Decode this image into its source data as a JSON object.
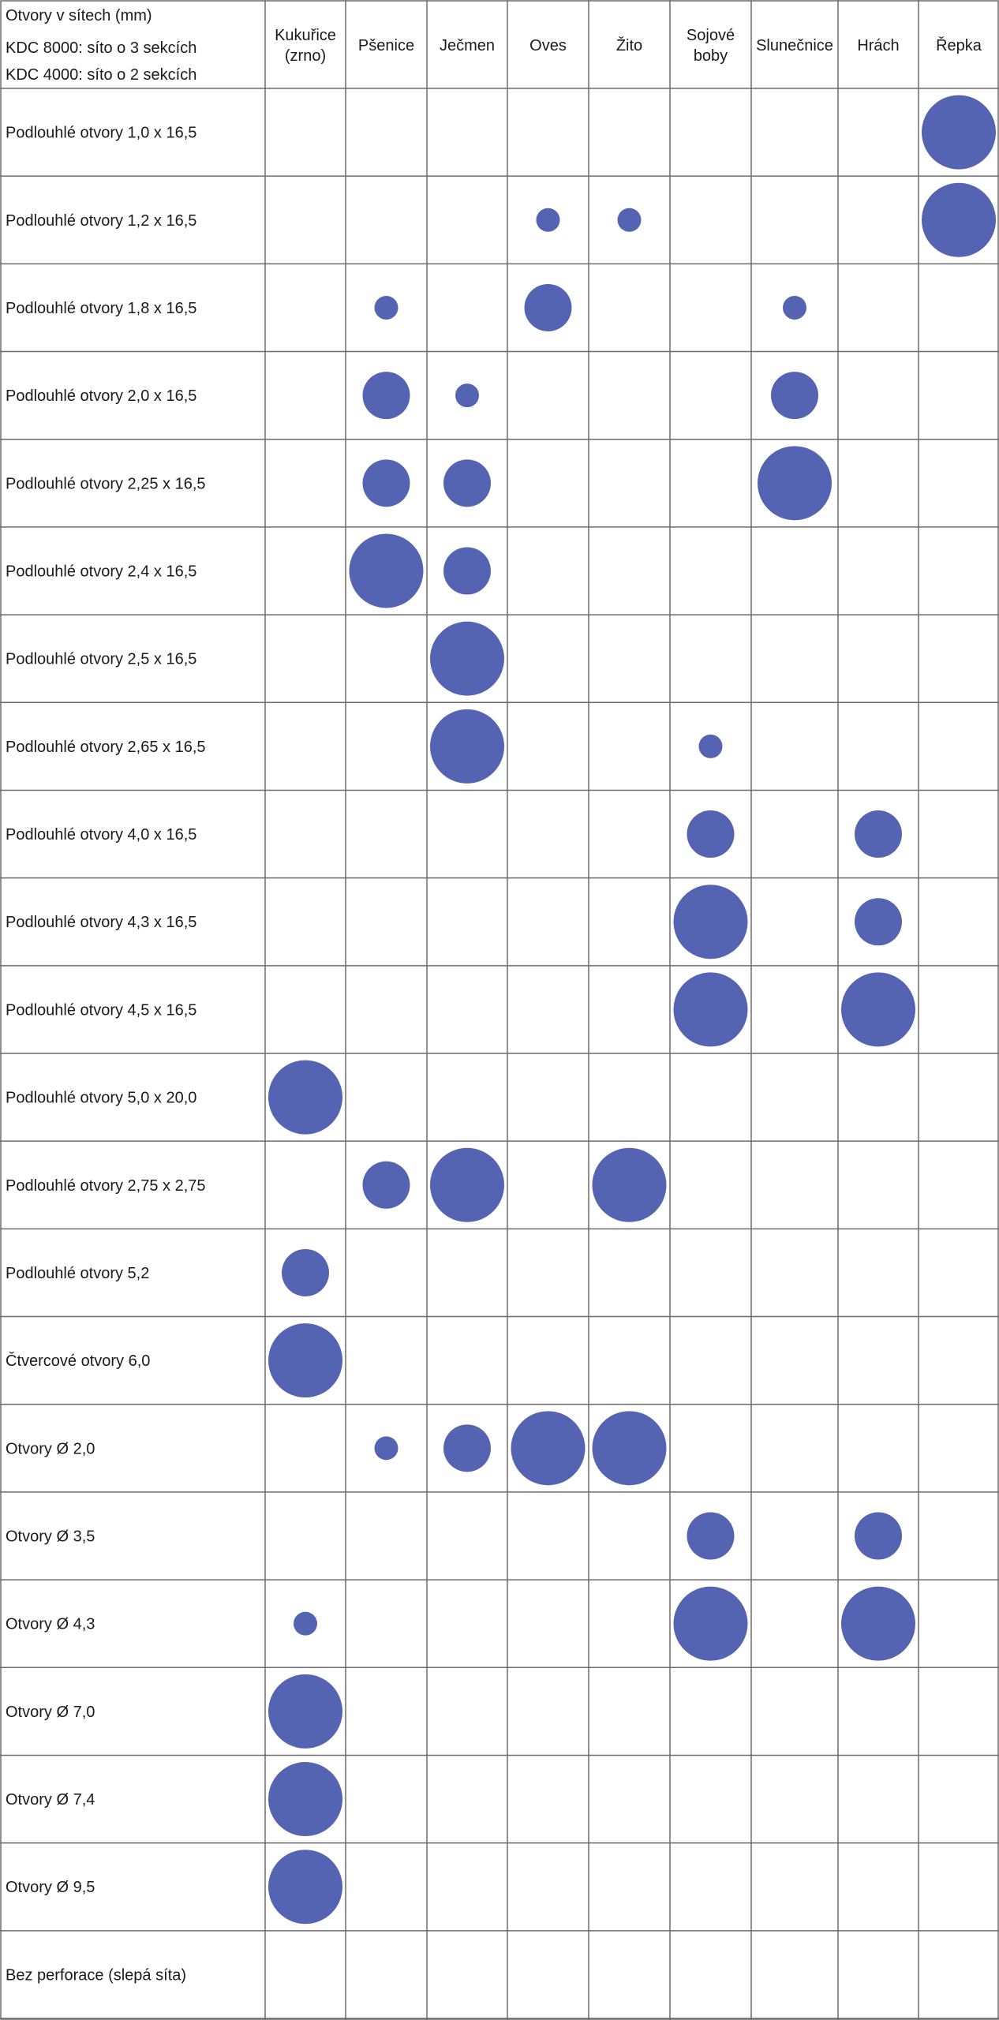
{
  "header": {
    "title_lines": [
      "Otvory v sítech (mm)",
      "KDC 8000: síto o 3 sekcích",
      "KDC 4000: síto o 2 sekcích"
    ]
  },
  "chart_data": {
    "type": "table",
    "columns": [
      "Kukuřice\n(zrno)",
      "Pšenice",
      "Ječmen",
      "Oves",
      "Žito",
      "Sojové\nboby",
      "Slunečnice",
      "Hrách",
      "Řepka"
    ],
    "rows": [
      "Podlouhlé otvory 1,0 x 16,5",
      "Podlouhlé otvory 1,2 x 16,5",
      "Podlouhlé otvory 1,8 x 16,5",
      "Podlouhlé otvory 2,0 x 16,5",
      "Podlouhlé otvory 2,25 x 16,5",
      "Podlouhlé otvory 2,4 x 16,5",
      "Podlouhlé otvory 2,5 x 16,5",
      "Podlouhlé otvory 2,65 x 16,5",
      "Podlouhlé otvory 4,0 x 16,5",
      "Podlouhlé otvory 4,3 x 16,5",
      "Podlouhlé otvory 4,5 x 16,5",
      "Podlouhlé otvory 5,0 x 20,0",
      "Podlouhlé otvory 2,75 x 2,75",
      "Podlouhlé otvory 5,2",
      "Čtvercové otvory 6,0",
      "Otvory Ø 2,0",
      "Otvory Ø 3,5",
      "Otvory Ø 4,3",
      "Otvory Ø 7,0",
      "Otvory Ø 7,4",
      "Otvory Ø 9,5",
      "Bez perforace (slepá síta)"
    ],
    "size_levels": [
      "small",
      "medium",
      "large"
    ],
    "marks": [
      {
        "row": 0,
        "col": 8,
        "size": 3
      },
      {
        "row": 1,
        "col": 3,
        "size": 1
      },
      {
        "row": 1,
        "col": 4,
        "size": 1
      },
      {
        "row": 1,
        "col": 8,
        "size": 3
      },
      {
        "row": 2,
        "col": 1,
        "size": 1
      },
      {
        "row": 2,
        "col": 3,
        "size": 2
      },
      {
        "row": 2,
        "col": 6,
        "size": 1
      },
      {
        "row": 3,
        "col": 1,
        "size": 2
      },
      {
        "row": 3,
        "col": 2,
        "size": 1
      },
      {
        "row": 3,
        "col": 6,
        "size": 2
      },
      {
        "row": 4,
        "col": 1,
        "size": 2
      },
      {
        "row": 4,
        "col": 2,
        "size": 2
      },
      {
        "row": 4,
        "col": 6,
        "size": 3
      },
      {
        "row": 5,
        "col": 1,
        "size": 3
      },
      {
        "row": 5,
        "col": 2,
        "size": 2
      },
      {
        "row": 6,
        "col": 2,
        "size": 3
      },
      {
        "row": 7,
        "col": 2,
        "size": 3
      },
      {
        "row": 7,
        "col": 5,
        "size": 1
      },
      {
        "row": 8,
        "col": 5,
        "size": 2
      },
      {
        "row": 8,
        "col": 7,
        "size": 2
      },
      {
        "row": 9,
        "col": 5,
        "size": 3
      },
      {
        "row": 9,
        "col": 7,
        "size": 2
      },
      {
        "row": 10,
        "col": 5,
        "size": 3
      },
      {
        "row": 10,
        "col": 7,
        "size": 3
      },
      {
        "row": 11,
        "col": 0,
        "size": 3
      },
      {
        "row": 12,
        "col": 1,
        "size": 2
      },
      {
        "row": 12,
        "col": 2,
        "size": 3
      },
      {
        "row": 12,
        "col": 4,
        "size": 3
      },
      {
        "row": 13,
        "col": 0,
        "size": 2
      },
      {
        "row": 14,
        "col": 0,
        "size": 3
      },
      {
        "row": 15,
        "col": 1,
        "size": 1
      },
      {
        "row": 15,
        "col": 2,
        "size": 2
      },
      {
        "row": 15,
        "col": 3,
        "size": 3
      },
      {
        "row": 15,
        "col": 4,
        "size": 3
      },
      {
        "row": 16,
        "col": 5,
        "size": 2
      },
      {
        "row": 16,
        "col": 7,
        "size": 2
      },
      {
        "row": 17,
        "col": 0,
        "size": 1
      },
      {
        "row": 17,
        "col": 5,
        "size": 3
      },
      {
        "row": 17,
        "col": 7,
        "size": 3
      },
      {
        "row": 18,
        "col": 0,
        "size": 3
      },
      {
        "row": 19,
        "col": 0,
        "size": 3
      },
      {
        "row": 20,
        "col": 0,
        "size": 3
      }
    ],
    "mark_color": "#5564b2",
    "grid_color": "#6b6b6b"
  }
}
